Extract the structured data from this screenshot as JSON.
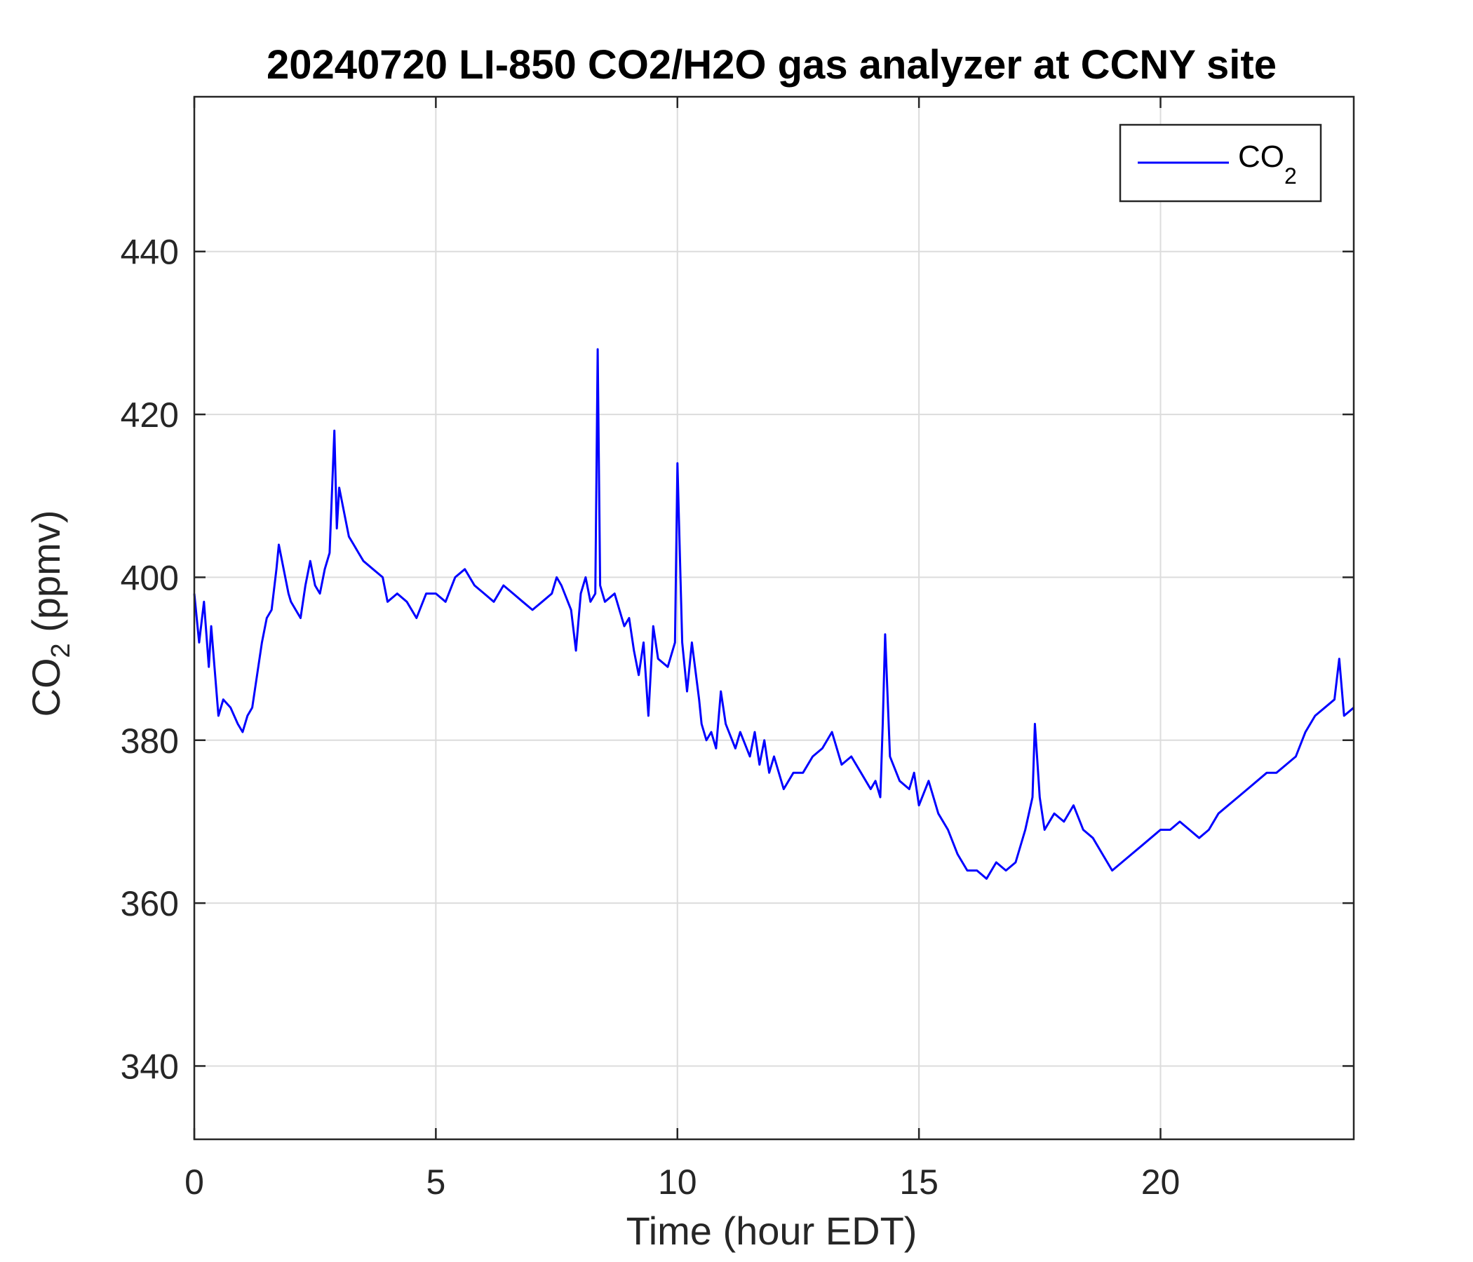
{
  "chart_data": {
    "type": "line",
    "title": "20240720 LI-850 CO2/H2O gas analyzer at CCNY site",
    "xlabel": "Time (hour EDT)",
    "ylabel_main": "CO",
    "ylabel_sub": "2",
    "ylabel_unit": " (ppmv)",
    "xlim": [
      0,
      24
    ],
    "ylim": [
      331,
      459
    ],
    "x_ticks": [
      0,
      5,
      10,
      15,
      20
    ],
    "y_ticks": [
      340,
      360,
      380,
      400,
      420,
      440
    ],
    "grid": true,
    "legend_position": "top-right",
    "legend": {
      "main": "CO",
      "sub": "2"
    },
    "colors": {
      "series": "#0000ff",
      "grid": "#dcdcdc",
      "axis": "#262626"
    },
    "series": [
      {
        "name": "CO2",
        "x": [
          0,
          0.1,
          0.2,
          0.3,
          0.35,
          0.5,
          0.6,
          0.75,
          0.9,
          1.0,
          1.1,
          1.2,
          1.3,
          1.4,
          1.5,
          1.6,
          1.7,
          1.75,
          1.85,
          1.95,
          2.0,
          2.1,
          2.2,
          2.3,
          2.4,
          2.5,
          2.6,
          2.7,
          2.8,
          2.9,
          2.95,
          3.0,
          3.1,
          3.2,
          3.3,
          3.4,
          3.5,
          3.7,
          3.9,
          4.0,
          4.2,
          4.4,
          4.6,
          4.8,
          5.0,
          5.2,
          5.4,
          5.6,
          5.8,
          6.0,
          6.2,
          6.4,
          6.6,
          6.8,
          7.0,
          7.2,
          7.4,
          7.5,
          7.6,
          7.8,
          7.9,
          8.0,
          8.1,
          8.2,
          8.3,
          8.35,
          8.4,
          8.5,
          8.7,
          8.9,
          9.0,
          9.1,
          9.2,
          9.3,
          9.4,
          9.5,
          9.6,
          9.8,
          9.95,
          10.0,
          10.1,
          10.2,
          10.3,
          10.45,
          10.5,
          10.6,
          10.7,
          10.8,
          10.9,
          11.0,
          11.2,
          11.3,
          11.5,
          11.6,
          11.7,
          11.8,
          11.9,
          12.0,
          12.2,
          12.4,
          12.6,
          12.8,
          13.0,
          13.2,
          13.4,
          13.6,
          13.8,
          14.0,
          14.1,
          14.2,
          14.25,
          14.3,
          14.4,
          14.6,
          14.8,
          14.9,
          15.0,
          15.2,
          15.4,
          15.6,
          15.8,
          16.0,
          16.2,
          16.4,
          16.6,
          16.8,
          17.0,
          17.2,
          17.35,
          17.4,
          17.5,
          17.6,
          17.8,
          18.0,
          18.2,
          18.4,
          18.6,
          18.8,
          19.0,
          19.2,
          19.4,
          19.6,
          19.8,
          20.0,
          20.2,
          20.4,
          20.6,
          20.8,
          21.0,
          21.2,
          21.4,
          21.6,
          21.8,
          22.0,
          22.2,
          22.4,
          22.6,
          22.8,
          23.0,
          23.2,
          23.4,
          23.6,
          23.7,
          23.8,
          24.0
        ],
        "y": [
          398,
          392,
          397,
          389,
          394,
          383,
          385,
          384,
          382,
          381,
          383,
          384,
          388,
          392,
          395,
          396,
          401,
          404,
          401,
          398,
          397,
          396,
          395,
          399,
          402,
          399,
          398,
          401,
          403,
          418,
          406,
          411,
          408,
          405,
          404,
          403,
          402,
          401,
          400,
          397,
          398,
          397,
          395,
          398,
          398,
          397,
          400,
          401,
          399,
          398,
          397,
          399,
          398,
          397,
          396,
          397,
          398,
          400,
          399,
          396,
          391,
          398,
          400,
          397,
          398,
          428,
          399,
          397,
          398,
          394,
          395,
          391,
          388,
          392,
          383,
          394,
          390,
          389,
          392,
          414,
          392,
          386,
          392,
          385,
          382,
          380,
          381,
          379,
          386,
          382,
          379,
          381,
          378,
          381,
          377,
          380,
          376,
          378,
          374,
          376,
          376,
          378,
          379,
          381,
          377,
          378,
          376,
          374,
          375,
          373,
          382,
          393,
          378,
          375,
          374,
          376,
          372,
          375,
          371,
          369,
          366,
          364,
          364,
          363,
          365,
          364,
          365,
          369,
          373,
          382,
          373,
          369,
          371,
          370,
          372,
          369,
          368,
          366,
          364,
          365,
          366,
          367,
          368,
          369,
          369,
          370,
          369,
          368,
          369,
          371,
          372,
          373,
          374,
          375,
          376,
          376,
          377,
          378,
          381,
          383,
          384,
          385,
          390,
          383,
          384
        ]
      }
    ]
  }
}
